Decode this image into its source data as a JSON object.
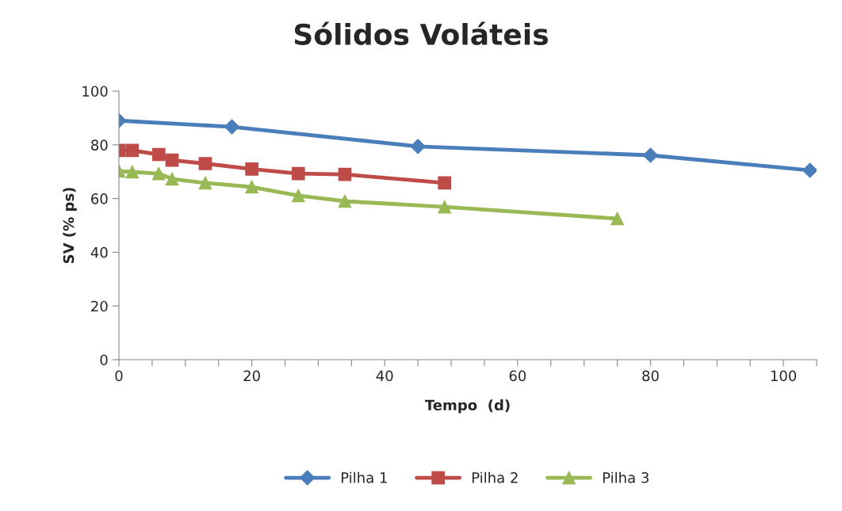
{
  "chart_data": {
    "type": "line",
    "title": "Sólidos Voláteis",
    "xlabel": "Tempo  (d)",
    "ylabel": "SV (% ps)",
    "xlim": [
      0,
      105
    ],
    "xticks": [
      0,
      {
        "value": 5,
        "label": null
      },
      20,
      {
        "value": 10,
        "label": null
      },
      {
        "value": 15,
        "label": null
      },
      {
        "value": 25,
        "label": null
      },
      {
        "value": 30,
        "label": null
      },
      {
        "value": 35,
        "label": null
      },
      40,
      {
        "value": 45,
        "label": null
      },
      {
        "value": 50,
        "label": null
      },
      {
        "value": 55,
        "label": null
      },
      60,
      {
        "value": 65,
        "label": null
      },
      {
        "value": 70,
        "label": null
      },
      {
        "value": 75,
        "label": null
      },
      80,
      {
        "value": 85,
        "label": null
      },
      {
        "value": 90,
        "label": null
      },
      {
        "value": 95,
        "label": null
      },
      100,
      {
        "value": 105,
        "label": null
      }
    ],
    "ylim": [
      0,
      100
    ],
    "yticks": [
      0,
      20,
      40,
      60,
      80,
      100
    ],
    "grid": false,
    "legend": "bottom",
    "series": [
      {
        "name": "Pilha 1",
        "color": "#4a7ebb",
        "marker": "diamond",
        "x": [
          0,
          17,
          45,
          80,
          104
        ],
        "values": [
          89,
          86.7,
          79.4,
          76.1,
          70.5
        ]
      },
      {
        "name": "Pilha 2",
        "color": "#be4b48",
        "marker": "square",
        "x": [
          0,
          2,
          6,
          8,
          13,
          20,
          27,
          34,
          49
        ],
        "values": [
          77.9,
          77.9,
          76.4,
          74.3,
          73.0,
          71.0,
          69.3,
          69.0,
          65.8
        ]
      },
      {
        "name": "Pilha 3",
        "color": "#98b954",
        "marker": "triangle",
        "x": [
          0,
          2,
          6,
          8,
          13,
          20,
          27,
          34,
          49,
          75
        ],
        "values": [
          70.2,
          69.9,
          69.3,
          67.3,
          65.8,
          64.3,
          61.1,
          59.0,
          56.9,
          52.5
        ]
      }
    ]
  }
}
